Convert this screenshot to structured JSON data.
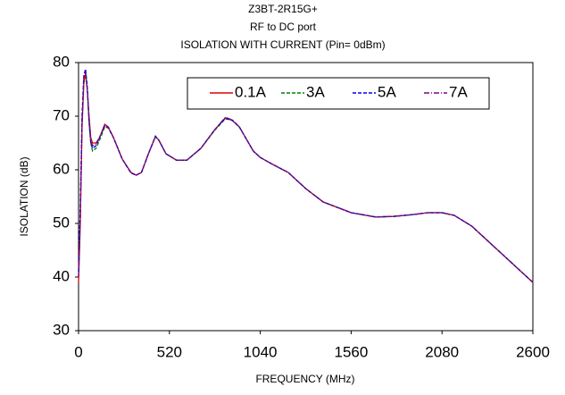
{
  "chart_data": {
    "type": "line",
    "title": "Z3BT-2R15G+",
    "subtitle": "RF to DC port",
    "subtitle2": "ISOLATION WITH CURRENT (Pin= 0dBm)",
    "x_label": "FREQUENCY (MHz)",
    "y_label": "ISOLATION (dB)",
    "x": [
      0,
      10,
      20,
      30,
      40,
      50,
      60,
      70,
      80,
      100,
      120,
      150,
      170,
      200,
      250,
      300,
      330,
      360,
      400,
      440,
      460,
      500,
      560,
      620,
      700,
      780,
      840,
      880,
      920,
      1000,
      1040,
      1100,
      1200,
      1300,
      1400,
      1560,
      1700,
      1800,
      1900,
      2000,
      2080,
      2150,
      2250,
      2350,
      2450,
      2600
    ],
    "series": [
      {
        "name": "0.1A",
        "color": "#e00000",
        "style": "solid",
        "values": [
          39,
          50,
          68,
          76,
          78,
          75,
          70,
          66,
          65,
          65,
          66,
          68.5,
          68,
          66,
          62,
          59.5,
          59,
          59.5,
          63,
          66.2,
          65.5,
          63,
          61.8,
          61.8,
          64,
          67.5,
          69.7,
          69.2,
          68,
          63.5,
          62.3,
          61.2,
          59.5,
          56.5,
          54,
          52,
          51.2,
          51.3,
          51.6,
          52,
          52,
          51.5,
          49.5,
          46.5,
          43.5,
          39
        ]
      },
      {
        "name": "3A",
        "color": "#008000",
        "style": "dashed",
        "values": [
          40,
          52,
          69,
          77,
          78.5,
          75,
          69,
          65,
          63.5,
          64,
          65.5,
          68,
          67.8,
          66,
          62,
          59.4,
          59,
          59.5,
          63,
          66.3,
          65.5,
          63,
          61.8,
          61.8,
          64,
          67.4,
          69.5,
          69.3,
          68,
          63.5,
          62.3,
          61.2,
          59.5,
          56.5,
          54,
          52,
          51.2,
          51.3,
          51.6,
          52,
          52,
          51.5,
          49.5,
          46.5,
          43.5,
          39
        ]
      },
      {
        "name": "5A",
        "color": "#0000e0",
        "style": "dashed",
        "values": [
          41,
          53,
          70,
          77.5,
          78.8,
          75.5,
          69,
          65,
          64,
          64.5,
          66,
          68.2,
          67.9,
          66,
          62,
          59.4,
          59,
          59.5,
          63,
          66.2,
          65.5,
          63,
          61.8,
          61.8,
          64,
          67.5,
          69.6,
          69.2,
          68,
          63.5,
          62.3,
          61.2,
          59.5,
          56.5,
          54,
          52,
          51.2,
          51.3,
          51.6,
          52,
          52,
          51.5,
          49.5,
          46.5,
          43.5,
          39
        ]
      },
      {
        "name": "7A",
        "color": "#800080",
        "style": "dashdot",
        "values": [
          40,
          51,
          69,
          77,
          78.2,
          75,
          69.5,
          65.5,
          64.5,
          64.8,
          66,
          68.3,
          68,
          66,
          62,
          59.5,
          59,
          59.5,
          63,
          66.2,
          65.5,
          63,
          61.8,
          61.8,
          64,
          67.5,
          69.8,
          69.3,
          68,
          63.5,
          62.3,
          61.2,
          59.5,
          56.5,
          54,
          52,
          51.2,
          51.3,
          51.6,
          52,
          52,
          51.5,
          49.5,
          46.5,
          43.5,
          39
        ]
      }
    ],
    "xlim": [
      0,
      2600
    ],
    "xticks": [
      0,
      520,
      1040,
      1560,
      2080,
      2600
    ],
    "ylim": [
      30,
      80
    ],
    "yticks": [
      30,
      40,
      50,
      60,
      70,
      80
    ],
    "grid": false,
    "legend": "top-right"
  }
}
